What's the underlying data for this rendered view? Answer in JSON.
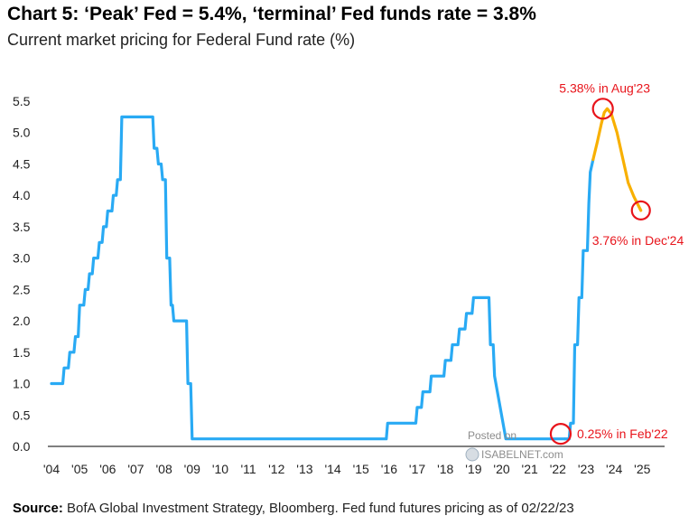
{
  "header": {
    "title": "Chart 5: ‘Peak’ Fed = 5.4%, ‘terminal’ Fed funds rate = 3.8%",
    "subtitle": "Current market pricing for Federal Fund rate (%)"
  },
  "footer": {
    "source_label": "Source:",
    "source_text": "BofA Global Investment Strategy, Bloomberg. Fed fund futures pricing as of 02/22/23"
  },
  "watermark": {
    "line1": "Posted on",
    "line2": "ISABELNET.com"
  },
  "colors": {
    "history": "#29aaf4",
    "pricing": "#f8b000",
    "highlight": "#e8141b",
    "axis": "#000000"
  },
  "chart_data": {
    "type": "line",
    "title": "Chart 5: ‘Peak’ Fed = 5.4%, ‘terminal’ Fed funds rate = 3.8%",
    "subtitle": "Current market pricing for Federal Fund rate (%)",
    "xlabel": "",
    "ylabel": "",
    "xlim": [
      2004,
      2025.6
    ],
    "ylim": [
      0,
      5.5
    ],
    "yticks": [
      0.0,
      0.5,
      1.0,
      1.5,
      2.0,
      2.5,
      3.0,
      3.5,
      4.0,
      4.5,
      5.0,
      5.5
    ],
    "ytick_labels": [
      "0.0",
      "0.5",
      "1.0",
      "1.5",
      "2.0",
      "2.5",
      "3.0",
      "3.5",
      "4.0",
      "4.5",
      "5.0",
      "5.5"
    ],
    "xticks": [
      2004,
      2005,
      2006,
      2007,
      2008,
      2009,
      2010,
      2011,
      2012,
      2013,
      2014,
      2015,
      2016,
      2017,
      2018,
      2019,
      2020,
      2021,
      2022,
      2023,
      2024,
      2025
    ],
    "xtick_labels": [
      "'04",
      "'05",
      "'06",
      "'07",
      "'08",
      "'09",
      "'10",
      "'11",
      "'12",
      "'13",
      "'14",
      "'15",
      "'16",
      "'17",
      "'18",
      "'19",
      "'20",
      "'21",
      "'22",
      "'23",
      "'24",
      "'25"
    ],
    "grid": false,
    "series": [
      {
        "color": "#29aaf4",
        "x": [
          2004.0,
          2004.4,
          2004.45,
          2004.6,
          2004.65,
          2004.8,
          2004.85,
          2004.95,
          2005.0,
          2005.15,
          2005.2,
          2005.3,
          2005.35,
          2005.45,
          2005.5,
          2005.65,
          2005.7,
          2005.8,
          2005.85,
          2005.95,
          2006.0,
          2006.15,
          2006.2,
          2006.3,
          2006.35,
          2006.45,
          2006.5,
          2007.6,
          2007.65,
          2007.75,
          2007.8,
          2007.9,
          2007.95,
          2008.05,
          2008.1,
          2008.2,
          2008.25,
          2008.3,
          2008.35,
          2008.8,
          2008.85,
          2008.95,
          2009.0,
          2015.9,
          2015.95,
          2016.95,
          2017.0,
          2017.15,
          2017.2,
          2017.45,
          2017.5,
          2017.95,
          2018.0,
          2018.2,
          2018.25,
          2018.45,
          2018.5,
          2018.7,
          2018.75,
          2018.95,
          2019.0,
          2019.55,
          2019.6,
          2019.7,
          2019.75,
          2020.15,
          2020.2,
          2022.25
        ],
        "values": [
          1.0,
          1.0,
          1.25,
          1.25,
          1.5,
          1.5,
          1.75,
          1.75,
          2.25,
          2.25,
          2.5,
          2.5,
          2.75,
          2.75,
          3.0,
          3.0,
          3.25,
          3.25,
          3.5,
          3.5,
          3.75,
          3.75,
          4.0,
          4.0,
          4.25,
          4.25,
          5.25,
          5.25,
          4.75,
          4.75,
          4.5,
          4.5,
          4.25,
          4.25,
          3.0,
          3.0,
          2.25,
          2.25,
          2.0,
          2.0,
          1.0,
          1.0,
          0.12,
          0.12,
          0.37,
          0.37,
          0.62,
          0.62,
          0.87,
          0.87,
          1.12,
          1.12,
          1.37,
          1.37,
          1.62,
          1.62,
          1.87,
          1.87,
          2.12,
          2.12,
          2.37,
          2.37,
          1.62,
          1.62,
          1.12,
          0.12,
          0.12,
          0.12
        ]
      },
      {
        "color": "#29aaf4",
        "x": [
          2022.25,
          2022.4,
          2022.45,
          2022.55,
          2022.6,
          2022.7,
          2022.75,
          2022.85,
          2022.9,
          2023.05,
          2023.1,
          2023.15,
          2023.25
        ],
        "values": [
          0.12,
          0.12,
          0.37,
          0.37,
          1.62,
          1.62,
          2.37,
          2.37,
          3.12,
          3.12,
          3.87,
          4.37,
          4.57
        ]
      },
      {
        "color": "#f8b000",
        "x": [
          2023.25,
          2023.4,
          2023.55,
          2023.65,
          2023.75,
          2023.9,
          2024.1,
          2024.3,
          2024.5,
          2024.7,
          2024.95
        ],
        "values": [
          4.57,
          4.85,
          5.15,
          5.32,
          5.38,
          5.3,
          5.0,
          4.6,
          4.2,
          3.98,
          3.76
        ]
      }
    ],
    "annotations": [
      {
        "text": "5.38% in Aug'23",
        "x": 2023.6,
        "y": 5.38
      },
      {
        "text": "3.76% in Dec'24",
        "x": 2024.95,
        "y": 3.76
      },
      {
        "text": "0.25% in Feb'22",
        "x": 2022.1,
        "y": 0.2
      }
    ]
  }
}
